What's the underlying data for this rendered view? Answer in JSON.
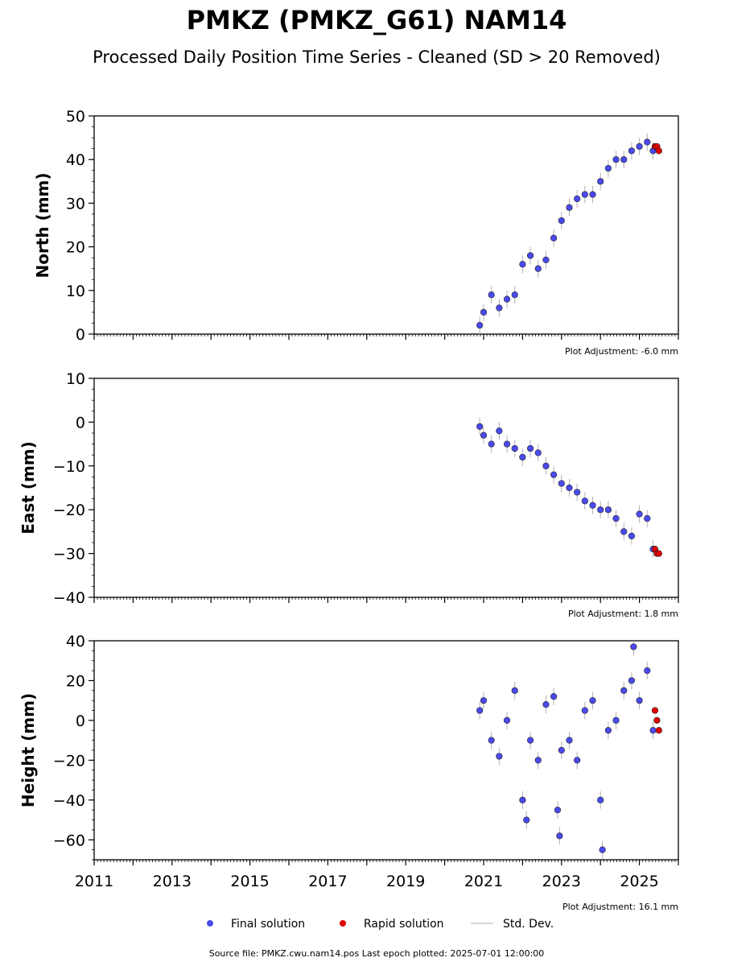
{
  "title": "PMKZ (PMKZ_G61) NAM14",
  "subtitle": "Processed Daily Position Time Series - Cleaned (SD > 20 Removed)",
  "footer": "Source file: PMKZ.cwu.nam14.pos  Last epoch plotted: 2025-07-01 12:00:00",
  "legend": {
    "final": "Final solution",
    "rapid": "Rapid solution",
    "stddev": "Std. Dev."
  },
  "colors": {
    "final": "#4a4af0",
    "rapid": "#e00000",
    "stddev": "#b0b0b0",
    "edge": "#222222"
  },
  "chart_data": {
    "type": "scatter",
    "xlim": [
      2011,
      2026
    ],
    "x_ticks": [
      "2011",
      "2013",
      "2015",
      "2017",
      "2019",
      "2021",
      "2023",
      "2025"
    ],
    "x_tick_values": [
      2011,
      2013,
      2015,
      2017,
      2019,
      2021,
      2023,
      2025
    ],
    "grid": false,
    "legend_position": "bottom",
    "panels": [
      {
        "ylabel": "North (mm)",
        "ylim": [
          0,
          50
        ],
        "y_ticks": [
          "0",
          "10",
          "20",
          "30",
          "40",
          "50"
        ],
        "y_tick_values": [
          0,
          10,
          20,
          30,
          40,
          50
        ],
        "adjustment": "Plot Adjustment: -6.0 mm",
        "final_solution": [
          [
            2020.9,
            2
          ],
          [
            2021.0,
            5
          ],
          [
            2021.2,
            9
          ],
          [
            2021.4,
            6
          ],
          [
            2021.6,
            8
          ],
          [
            2021.8,
            9
          ],
          [
            2022.0,
            16
          ],
          [
            2022.2,
            18
          ],
          [
            2022.4,
            15
          ],
          [
            2022.6,
            17
          ],
          [
            2022.8,
            22
          ],
          [
            2023.0,
            26
          ],
          [
            2023.2,
            29
          ],
          [
            2023.4,
            31
          ],
          [
            2023.6,
            32
          ],
          [
            2023.8,
            32
          ],
          [
            2024.0,
            35
          ],
          [
            2024.2,
            38
          ],
          [
            2024.4,
            40
          ],
          [
            2024.6,
            40
          ],
          [
            2024.8,
            42
          ],
          [
            2025.0,
            43
          ],
          [
            2025.2,
            44
          ],
          [
            2025.35,
            42
          ]
        ],
        "rapid_solution": [
          [
            2025.4,
            43
          ],
          [
            2025.45,
            43
          ],
          [
            2025.5,
            42
          ]
        ]
      },
      {
        "ylabel": "East (mm)",
        "ylim": [
          -40,
          10
        ],
        "y_ticks": [
          "−40",
          "−30",
          "−20",
          "−10",
          "0",
          "10"
        ],
        "y_tick_values": [
          -40,
          -30,
          -20,
          -10,
          0,
          10
        ],
        "adjustment": "Plot Adjustment: 1.8 mm",
        "final_solution": [
          [
            2020.9,
            -1
          ],
          [
            2021.0,
            -3
          ],
          [
            2021.2,
            -5
          ],
          [
            2021.4,
            -2
          ],
          [
            2021.6,
            -5
          ],
          [
            2021.8,
            -6
          ],
          [
            2022.0,
            -8
          ],
          [
            2022.2,
            -6
          ],
          [
            2022.4,
            -7
          ],
          [
            2022.6,
            -10
          ],
          [
            2022.8,
            -12
          ],
          [
            2023.0,
            -14
          ],
          [
            2023.2,
            -15
          ],
          [
            2023.4,
            -16
          ],
          [
            2023.6,
            -18
          ],
          [
            2023.8,
            -19
          ],
          [
            2024.0,
            -20
          ],
          [
            2024.2,
            -20
          ],
          [
            2024.4,
            -22
          ],
          [
            2024.6,
            -25
          ],
          [
            2024.8,
            -26
          ],
          [
            2025.0,
            -21
          ],
          [
            2025.2,
            -22
          ],
          [
            2025.35,
            -29
          ]
        ],
        "rapid_solution": [
          [
            2025.4,
            -29
          ],
          [
            2025.45,
            -30
          ],
          [
            2025.5,
            -30
          ]
        ]
      },
      {
        "ylabel": "Height (mm)",
        "ylim": [
          -70,
          40
        ],
        "y_ticks": [
          "−60",
          "−40",
          "−20",
          "0",
          "20",
          "40"
        ],
        "y_tick_values": [
          -60,
          -40,
          -20,
          0,
          20,
          40
        ],
        "adjustment": "Plot Adjustment: 16.1 mm",
        "final_solution": [
          [
            2020.9,
            5
          ],
          [
            2021.0,
            10
          ],
          [
            2021.2,
            -10
          ],
          [
            2021.4,
            -18
          ],
          [
            2021.6,
            0
          ],
          [
            2021.8,
            15
          ],
          [
            2022.0,
            -40
          ],
          [
            2022.1,
            -50
          ],
          [
            2022.2,
            -10
          ],
          [
            2022.4,
            -20
          ],
          [
            2022.6,
            8
          ],
          [
            2022.8,
            12
          ],
          [
            2022.9,
            -45
          ],
          [
            2022.95,
            -58
          ],
          [
            2023.0,
            -15
          ],
          [
            2023.2,
            -10
          ],
          [
            2023.4,
            -20
          ],
          [
            2023.6,
            5
          ],
          [
            2023.8,
            10
          ],
          [
            2024.0,
            -40
          ],
          [
            2024.05,
            -65
          ],
          [
            2024.2,
            -5
          ],
          [
            2024.4,
            0
          ],
          [
            2024.6,
            15
          ],
          [
            2024.8,
            20
          ],
          [
            2024.85,
            37
          ],
          [
            2025.0,
            10
          ],
          [
            2025.2,
            25
          ],
          [
            2025.35,
            -5
          ]
        ],
        "rapid_solution": [
          [
            2025.4,
            5
          ],
          [
            2025.45,
            0
          ],
          [
            2025.5,
            -5
          ]
        ]
      }
    ]
  }
}
